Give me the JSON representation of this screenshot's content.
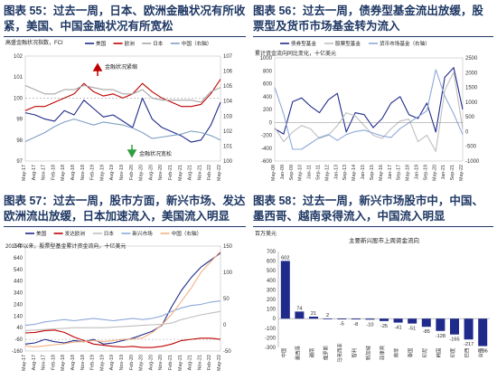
{
  "panels": [
    {
      "title": "图表 55：过去一周，日本、欧洲金融状况有所收紧，美国、中国金融状况有所宽松",
      "chart_data": {
        "type": "line",
        "title": "",
        "subtitle": "高盛金融状况指数，FCI",
        "legend": [
          "美国",
          "欧洲",
          "日本",
          "中国（右轴）"
        ],
        "x_ticks": [
          "May-17",
          "Aug-17",
          "Nov-17",
          "Feb-18",
          "May-18",
          "Aug-18",
          "Nov-18",
          "Feb-19",
          "May-19",
          "Aug-19",
          "Nov-19",
          "Feb-20",
          "May-20",
          "Aug-20",
          "Nov-20",
          "Feb-21",
          "May-21",
          "Aug-21",
          "Nov-21",
          "Feb-22",
          "May-22"
        ],
        "y_left": {
          "min": 97,
          "max": 102,
          "ticks": [
            97,
            98,
            99,
            100,
            101,
            102
          ]
        },
        "y_right": {
          "min": 100,
          "max": 107,
          "ticks": [
            100,
            101,
            102,
            103,
            104,
            105,
            106,
            107
          ]
        },
        "annotations": [
          "金融状况紧缩",
          "金融状况宽松"
        ],
        "colors": {
          "美国": "#1f2a8a",
          "欧洲": "#c00000",
          "日本": "#a6a6a6",
          "中国（右轴）": "#7f9fc4"
        },
        "series": [
          {
            "name": "美国",
            "axis": "left",
            "values": [
              99.3,
              99.2,
              99.0,
              98.9,
              99.4,
              99.2,
              99.9,
              99.5,
              99.1,
              99.2,
              98.9,
              98.6,
              100.0,
              99.0,
              98.6,
              98.4,
              98.2,
              97.9,
              98.0,
              98.7,
              99.8
            ]
          },
          {
            "name": "欧洲",
            "axis": "left",
            "values": [
              99.4,
              99.6,
              99.6,
              99.8,
              100.0,
              100.2,
              100.7,
              100.3,
              100.1,
              100.2,
              100.0,
              100.2,
              100.7,
              100.3,
              100.0,
              99.8,
              99.6,
              99.6,
              99.7,
              100.2,
              100.9
            ]
          },
          {
            "name": "日本",
            "axis": "left",
            "values": [
              100.6,
              100.4,
              100.2,
              100.2,
              100.4,
              100.4,
              100.6,
              100.5,
              100.4,
              100.4,
              100.2,
              100.2,
              100.4,
              100.0,
              99.9,
              99.9,
              99.9,
              99.9,
              99.8,
              100.3,
              100.5
            ]
          },
          {
            "name": "中国（右轴）",
            "axis": "right",
            "values": [
              101.3,
              101.6,
              101.9,
              102.3,
              102.6,
              102.8,
              102.6,
              102.4,
              102.6,
              102.5,
              102.4,
              102.2,
              101.9,
              101.5,
              101.6,
              101.7,
              101.8,
              102.0,
              101.9,
              101.7,
              101.4
            ]
          }
        ]
      }
    },
    {
      "title": "图表 56：过去一周，债券型基金流出放缓，股票型及货币市场基金转为流入",
      "chart_data": {
        "type": "line",
        "title": "",
        "subtitle": "累计资金流向同比变化，十亿美元",
        "legend": [
          "债券型基金",
          "股票型基金",
          "货币市场基金（右轴）"
        ],
        "x_ticks": [
          "May-08",
          "Jan-09",
          "Sep-09",
          "May-10",
          "Jan-11",
          "Sep-11",
          "May-12",
          "Jan-13",
          "Sep-13",
          "May-14",
          "Jan-15",
          "Sep-15",
          "May-16",
          "Jan-17",
          "Sep-17",
          "May-18",
          "Jan-19",
          "Sep-19",
          "May-20",
          "Jan-21",
          "Sep-21",
          "May-22"
        ],
        "y_left": {
          "min": -600,
          "max": 1000,
          "ticks": [
            -600,
            -400,
            -200,
            0,
            200,
            400,
            600,
            800,
            1000
          ]
        },
        "y_right": {
          "min": -1000,
          "max": 2500,
          "ticks": [
            -1000,
            -500,
            0,
            500,
            1000,
            1500,
            2000,
            2500
          ]
        },
        "colors": {
          "债券型基金": "#1f2a8a",
          "股票型基金": "#bfbfbf",
          "货币市场基金（右轴）": "#8ea9d8"
        },
        "series": [
          {
            "name": "债券型基金",
            "axis": "left",
            "values": [
              -100,
              -180,
              320,
              380,
              250,
              150,
              350,
              450,
              -150,
              150,
              120,
              -80,
              60,
              300,
              400,
              120,
              60,
              300,
              -150,
              700,
              850,
              200
            ]
          },
          {
            "name": "股票型基金",
            "axis": "left",
            "values": [
              -80,
              -300,
              -150,
              -50,
              -100,
              -250,
              -200,
              -50,
              150,
              100,
              -50,
              -200,
              -250,
              -100,
              20,
              50,
              -300,
              -200,
              -450,
              500,
              780,
              -100
            ]
          },
          {
            "name": "货币市场基金（右轴）",
            "axis": "right",
            "values": [
              1500,
              600,
              -600,
              -600,
              -400,
              -200,
              -100,
              -300,
              -100,
              0,
              50,
              -50,
              -150,
              -200,
              100,
              300,
              500,
              700,
              2100,
              1200,
              600,
              -100
            ]
          }
        ]
      }
    },
    {
      "title": "图表 57：过去一周，股市方面，新兴市场、发达欧洲流出放缓，日本加速流入，美国流入明显",
      "chart_data": {
        "type": "line",
        "title": "",
        "subtitle": "2015年以来，股票型基金累计资金流向，十亿美元",
        "legend": [
          "美国",
          "发达欧洲",
          "日本",
          "新兴市场",
          "中国（右轴）"
        ],
        "x_ticks": [
          "May-17",
          "Aug-17",
          "Nov-17",
          "Feb-18",
          "May-18",
          "Aug-18",
          "Nov-18",
          "Feb-19",
          "May-19",
          "Aug-19",
          "Nov-19",
          "Feb-20",
          "May-20",
          "Aug-20",
          "Nov-20",
          "Feb-21",
          "May-21",
          "Aug-21",
          "Nov-21",
          "Feb-22",
          "May-22"
        ],
        "y_left": {
          "min": -160,
          "max": 740,
          "ticks": [
            -160,
            -60,
            40,
            140,
            240,
            340,
            440,
            540,
            640,
            740
          ]
        },
        "y_right": {
          "min": -50,
          "max": 150,
          "ticks": [
            -50,
            0,
            50,
            100,
            150
          ]
        },
        "colors": {
          "美国": "#1f2a8a",
          "发达欧洲": "#c00000",
          "日本": "#bfbfbf",
          "新兴市场": "#8ea9d8",
          "中国（右轴）": "#f4b183"
        },
        "series": [
          {
            "name": "美国",
            "axis": "left",
            "values": [
              -100,
              -90,
              -60,
              -80,
              -90,
              -70,
              -80,
              -60,
              -100,
              -90,
              -70,
              -50,
              -20,
              10,
              60,
              220,
              360,
              470,
              560,
              620,
              680
            ]
          },
          {
            "name": "发达欧洲",
            "axis": "left",
            "values": [
              -5,
              0,
              15,
              20,
              0,
              -40,
              -70,
              -100,
              -110,
              -120,
              -125,
              -120,
              -130,
              -130,
              -120,
              -100,
              -70,
              -60,
              -50,
              -50,
              -60
            ]
          },
          {
            "name": "日本",
            "axis": "left",
            "values": [
              15,
              20,
              25,
              30,
              35,
              40,
              40,
              40,
              40,
              45,
              50,
              55,
              60,
              65,
              70,
              80,
              110,
              130,
              150,
              165,
              180
            ]
          },
          {
            "name": "新兴市场",
            "axis": "left",
            "values": [
              60,
              70,
              90,
              100,
              110,
              100,
              110,
              120,
              110,
              100,
              110,
              120,
              110,
              120,
              140,
              180,
              210,
              230,
              240,
              260,
              270
            ]
          },
          {
            "name": "中国（右轴）",
            "axis": "right",
            "values": [
              -40,
              -42,
              -40,
              -38,
              -36,
              -33,
              -32,
              -30,
              -32,
              -30,
              -28,
              -27,
              -25,
              -15,
              0,
              20,
              45,
              70,
              100,
              120,
              140
            ]
          }
        ]
      }
    },
    {
      "title": "图表 58：过去一周，新兴市场股市中，中国、墨西哥、越南录得流入，中国流入明显",
      "chart_data": {
        "type": "bar",
        "title": "主要新兴股市上周资金流向",
        "ylabel": "百万美元",
        "ylim": [
          -300,
          700
        ],
        "ticks": [
          -300,
          -200,
          -100,
          0,
          100,
          200,
          300,
          400,
          500,
          600,
          700
        ],
        "categories": [
          "中国",
          "墨西哥",
          "越南",
          "俄罗斯",
          "马来西亚",
          "智利",
          "新加坡",
          "菲律宾",
          "南非",
          "泰国",
          "印尼",
          "韩国",
          "印度",
          "巴西",
          "台湾"
        ],
        "values": [
          602,
          74,
          21,
          2,
          -5,
          -8,
          -10,
          -25,
          -41,
          -51,
          -85,
          -128,
          -165,
          -217,
          -286
        ],
        "bar_color": "#1f2a8a"
      }
    }
  ]
}
